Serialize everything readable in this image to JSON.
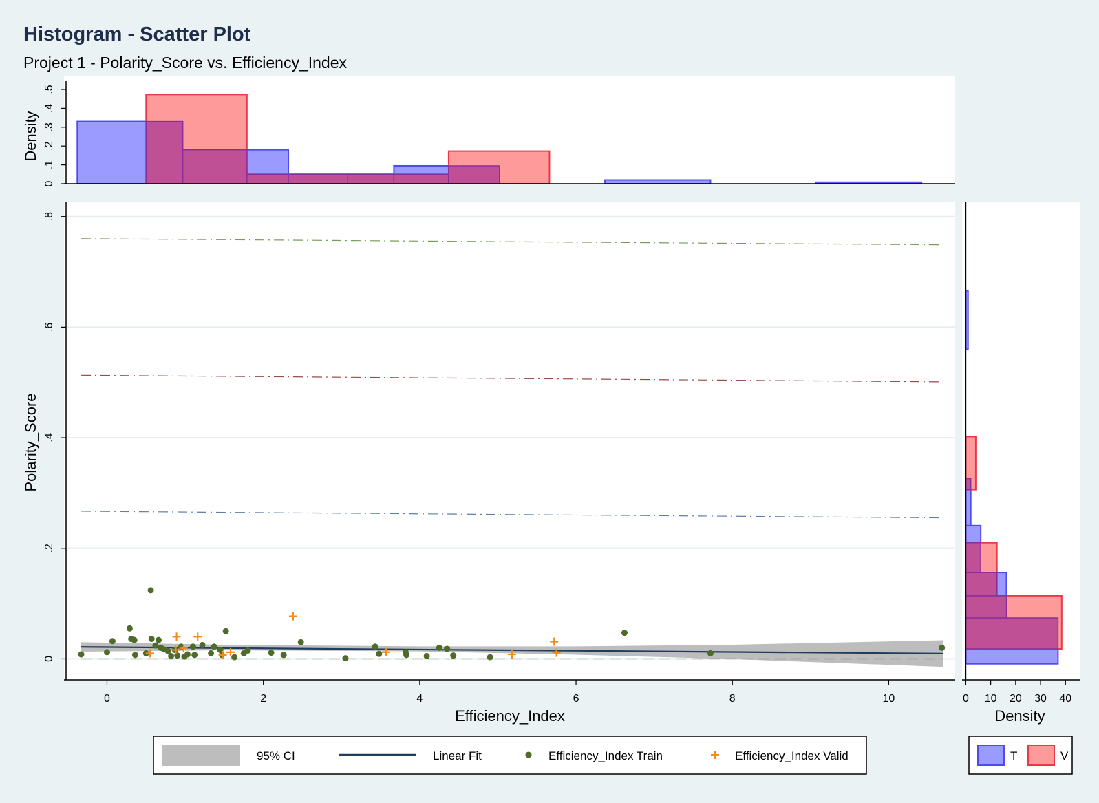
{
  "chart_data": {
    "type": "scatter",
    "title": "Histogram - Scatter Plot",
    "subtitle": "Project 1 - Polarity_Score vs. Efficiency_Index",
    "xlabel": "Efficiency_Index",
    "ylabel": "Polarity_Score",
    "xlim": [
      -0.55,
      10.85
    ],
    "ylim": [
      -0.038,
      0.827
    ],
    "xticks": [
      0,
      2,
      4,
      6,
      8,
      10
    ],
    "yticks": [
      0,
      0.2,
      0.4,
      0.6,
      0.8
    ],
    "ytick_labels": [
      "0",
      ".2",
      ".4",
      ".6",
      ".8"
    ],
    "grid": true,
    "colors": {
      "background": "#eaf2f3",
      "plot_bg": "#ffffff",
      "train_marker": "#4f6b2a",
      "valid_marker": "#f28c1c",
      "fit_line": "#1f3d5c",
      "ci_band": "#bdbdbd",
      "hist_T_fill": "#9b9bff",
      "hist_T_edge": "#4b4bf0",
      "hist_V_fill": "#ff9a9a",
      "hist_V_edge": "#e8394a",
      "overlap": "#c05096"
    },
    "series": [
      {
        "name": "Efficiency_Index Train",
        "marker": "circle",
        "points": [
          [
            -0.33,
            0.008
          ],
          [
            0.0,
            0.012
          ],
          [
            0.07,
            0.032
          ],
          [
            0.29,
            0.055
          ],
          [
            0.31,
            0.036
          ],
          [
            0.35,
            0.034
          ],
          [
            0.36,
            0.007
          ],
          [
            0.5,
            0.01
          ],
          [
            0.56,
            0.124
          ],
          [
            0.57,
            0.036
          ],
          [
            0.62,
            0.024
          ],
          [
            0.66,
            0.034
          ],
          [
            0.69,
            0.02
          ],
          [
            0.73,
            0.017
          ],
          [
            0.78,
            0.014
          ],
          [
            0.82,
            0.005
          ],
          [
            0.87,
            0.016
          ],
          [
            0.9,
            0.006
          ],
          [
            0.95,
            0.022
          ],
          [
            0.99,
            0.004
          ],
          [
            1.03,
            0.008
          ],
          [
            1.1,
            0.022
          ],
          [
            1.12,
            0.007
          ],
          [
            1.22,
            0.025
          ],
          [
            1.33,
            0.01
          ],
          [
            1.37,
            0.022
          ],
          [
            1.45,
            0.016
          ],
          [
            1.47,
            0.007
          ],
          [
            1.52,
            0.05
          ],
          [
            1.63,
            0.003
          ],
          [
            1.75,
            0.01
          ],
          [
            1.8,
            0.015
          ],
          [
            2.1,
            0.011
          ],
          [
            2.26,
            0.007
          ],
          [
            2.48,
            0.03
          ],
          [
            3.05,
            0.001
          ],
          [
            3.43,
            0.022
          ],
          [
            3.48,
            0.009
          ],
          [
            3.82,
            0.012
          ],
          [
            3.83,
            0.007
          ],
          [
            4.09,
            0.005
          ],
          [
            4.25,
            0.02
          ],
          [
            4.35,
            0.018
          ],
          [
            4.43,
            0.006
          ],
          [
            4.9,
            0.003
          ],
          [
            6.62,
            0.047
          ],
          [
            7.72,
            0.01
          ],
          [
            10.68,
            0.02
          ]
        ]
      },
      {
        "name": "Efficiency_Index Valid",
        "marker": "plus",
        "points": [
          [
            0.55,
            0.01
          ],
          [
            0.88,
            0.016
          ],
          [
            0.89,
            0.04
          ],
          [
            0.98,
            0.019
          ],
          [
            1.16,
            0.04
          ],
          [
            1.48,
            0.007
          ],
          [
            1.58,
            0.012
          ],
          [
            2.38,
            0.077
          ],
          [
            3.57,
            0.012
          ],
          [
            5.18,
            0.008
          ],
          [
            5.72,
            0.031
          ],
          [
            5.75,
            0.011
          ]
        ]
      }
    ],
    "linear_fit": {
      "name": "Linear Fit",
      "x": [
        -0.33,
        10.7
      ],
      "y": [
        0.0215,
        0.0095
      ]
    },
    "ci": {
      "name": "95% CI",
      "x": [
        -0.33,
        1.5,
        4.0,
        6.0,
        8.0,
        10.7
      ],
      "upper": [
        0.03,
        0.0255,
        0.0225,
        0.0225,
        0.0255,
        0.0335
      ],
      "lower": [
        0.013,
        0.0155,
        0.0135,
        0.0075,
        -0.0005,
        -0.0145
      ]
    },
    "reference_lines": [
      {
        "x": [
          -0.33,
          10.7
        ],
        "y": [
          0.76,
          0.749
        ],
        "color": "#7a9a5a",
        "dash": "dashdot"
      },
      {
        "x": [
          -0.33,
          10.7
        ],
        "y": [
          0.513,
          0.501
        ],
        "color": "#9b4a4a",
        "dash": "dashdot"
      },
      {
        "x": [
          -0.33,
          10.7
        ],
        "y": [
          0.267,
          0.255
        ],
        "color": "#5f7fa8",
        "dash": "dashdot"
      },
      {
        "x": [
          -0.33,
          10.7
        ],
        "y": [
          0.0,
          0.0
        ],
        "color": "#6b6b4a",
        "dash": "longdash"
      }
    ],
    "top_histogram": {
      "ylabel": "Density",
      "ylim": [
        0,
        0.55
      ],
      "yticks": [
        0,
        0.1,
        0.2,
        0.3,
        0.4,
        0.5
      ],
      "ytick_labels": [
        "0",
        ".1",
        ".2",
        ".3",
        ".4",
        ".5"
      ],
      "T": [
        [
          -0.38,
          0.97,
          0.33
        ],
        [
          0.97,
          2.32,
          0.18
        ],
        [
          2.32,
          3.67,
          0.05
        ],
        [
          3.67,
          5.02,
          0.095
        ],
        [
          5.02,
          6.37,
          0.0
        ],
        [
          6.37,
          7.72,
          0.02
        ],
        [
          7.72,
          9.07,
          0.0
        ],
        [
          9.07,
          10.42,
          0.008
        ]
      ],
      "V": [
        [
          0.5,
          1.79,
          0.473
        ],
        [
          1.79,
          3.08,
          0.05
        ],
        [
          3.08,
          4.37,
          0.05
        ],
        [
          4.37,
          5.66,
          0.173
        ]
      ]
    },
    "right_histogram": {
      "xlabel": "Density",
      "xlim": [
        -1.5,
        46
      ],
      "xticks": [
        0,
        10,
        20,
        30,
        40
      ],
      "xtick_labels": [
        "0",
        "10",
        "20",
        "30",
        "40"
      ],
      "T": [
        [
          -0.009,
          0.074,
          37.0
        ],
        [
          0.074,
          0.156,
          16.3
        ],
        [
          0.156,
          0.241,
          6.0
        ],
        [
          0.241,
          0.326,
          2.0
        ],
        [
          0.326,
          0.56,
          0.0
        ],
        [
          0.56,
          0.666,
          0.9
        ]
      ],
      "V": [
        [
          0.018,
          0.114,
          38.5
        ],
        [
          0.114,
          0.21,
          12.5
        ],
        [
          0.21,
          0.306,
          0.0
        ],
        [
          0.306,
          0.402,
          4.0
        ]
      ]
    },
    "legend": {
      "ci": "95% CI",
      "fit": "Linear Fit",
      "train": "Efficiency_Index Train",
      "valid": "Efficiency_Index Valid",
      "T": "T",
      "V": "V"
    }
  }
}
